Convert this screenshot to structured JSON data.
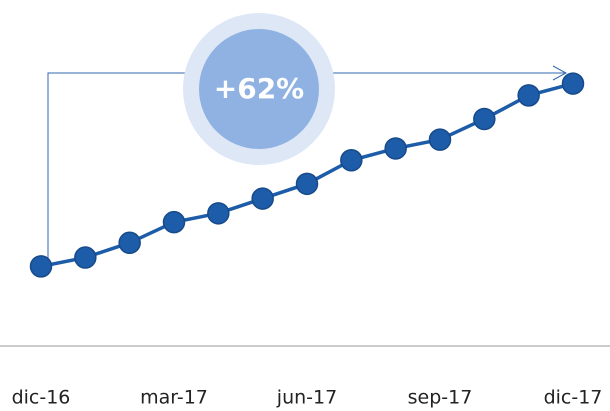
{
  "chart_data": {
    "type": "line",
    "annotation": "+62%",
    "categories": [
      "dic-16",
      null,
      null,
      "mar-17",
      null,
      null,
      "jun-17",
      null,
      null,
      "sep-17",
      null,
      null,
      "dic-17"
    ],
    "values": [
      100,
      103,
      108,
      115,
      118,
      123,
      128,
      136,
      140,
      143,
      150,
      158,
      162
    ],
    "color": "#1d5ca8",
    "ylim": [
      73,
      170
    ]
  }
}
